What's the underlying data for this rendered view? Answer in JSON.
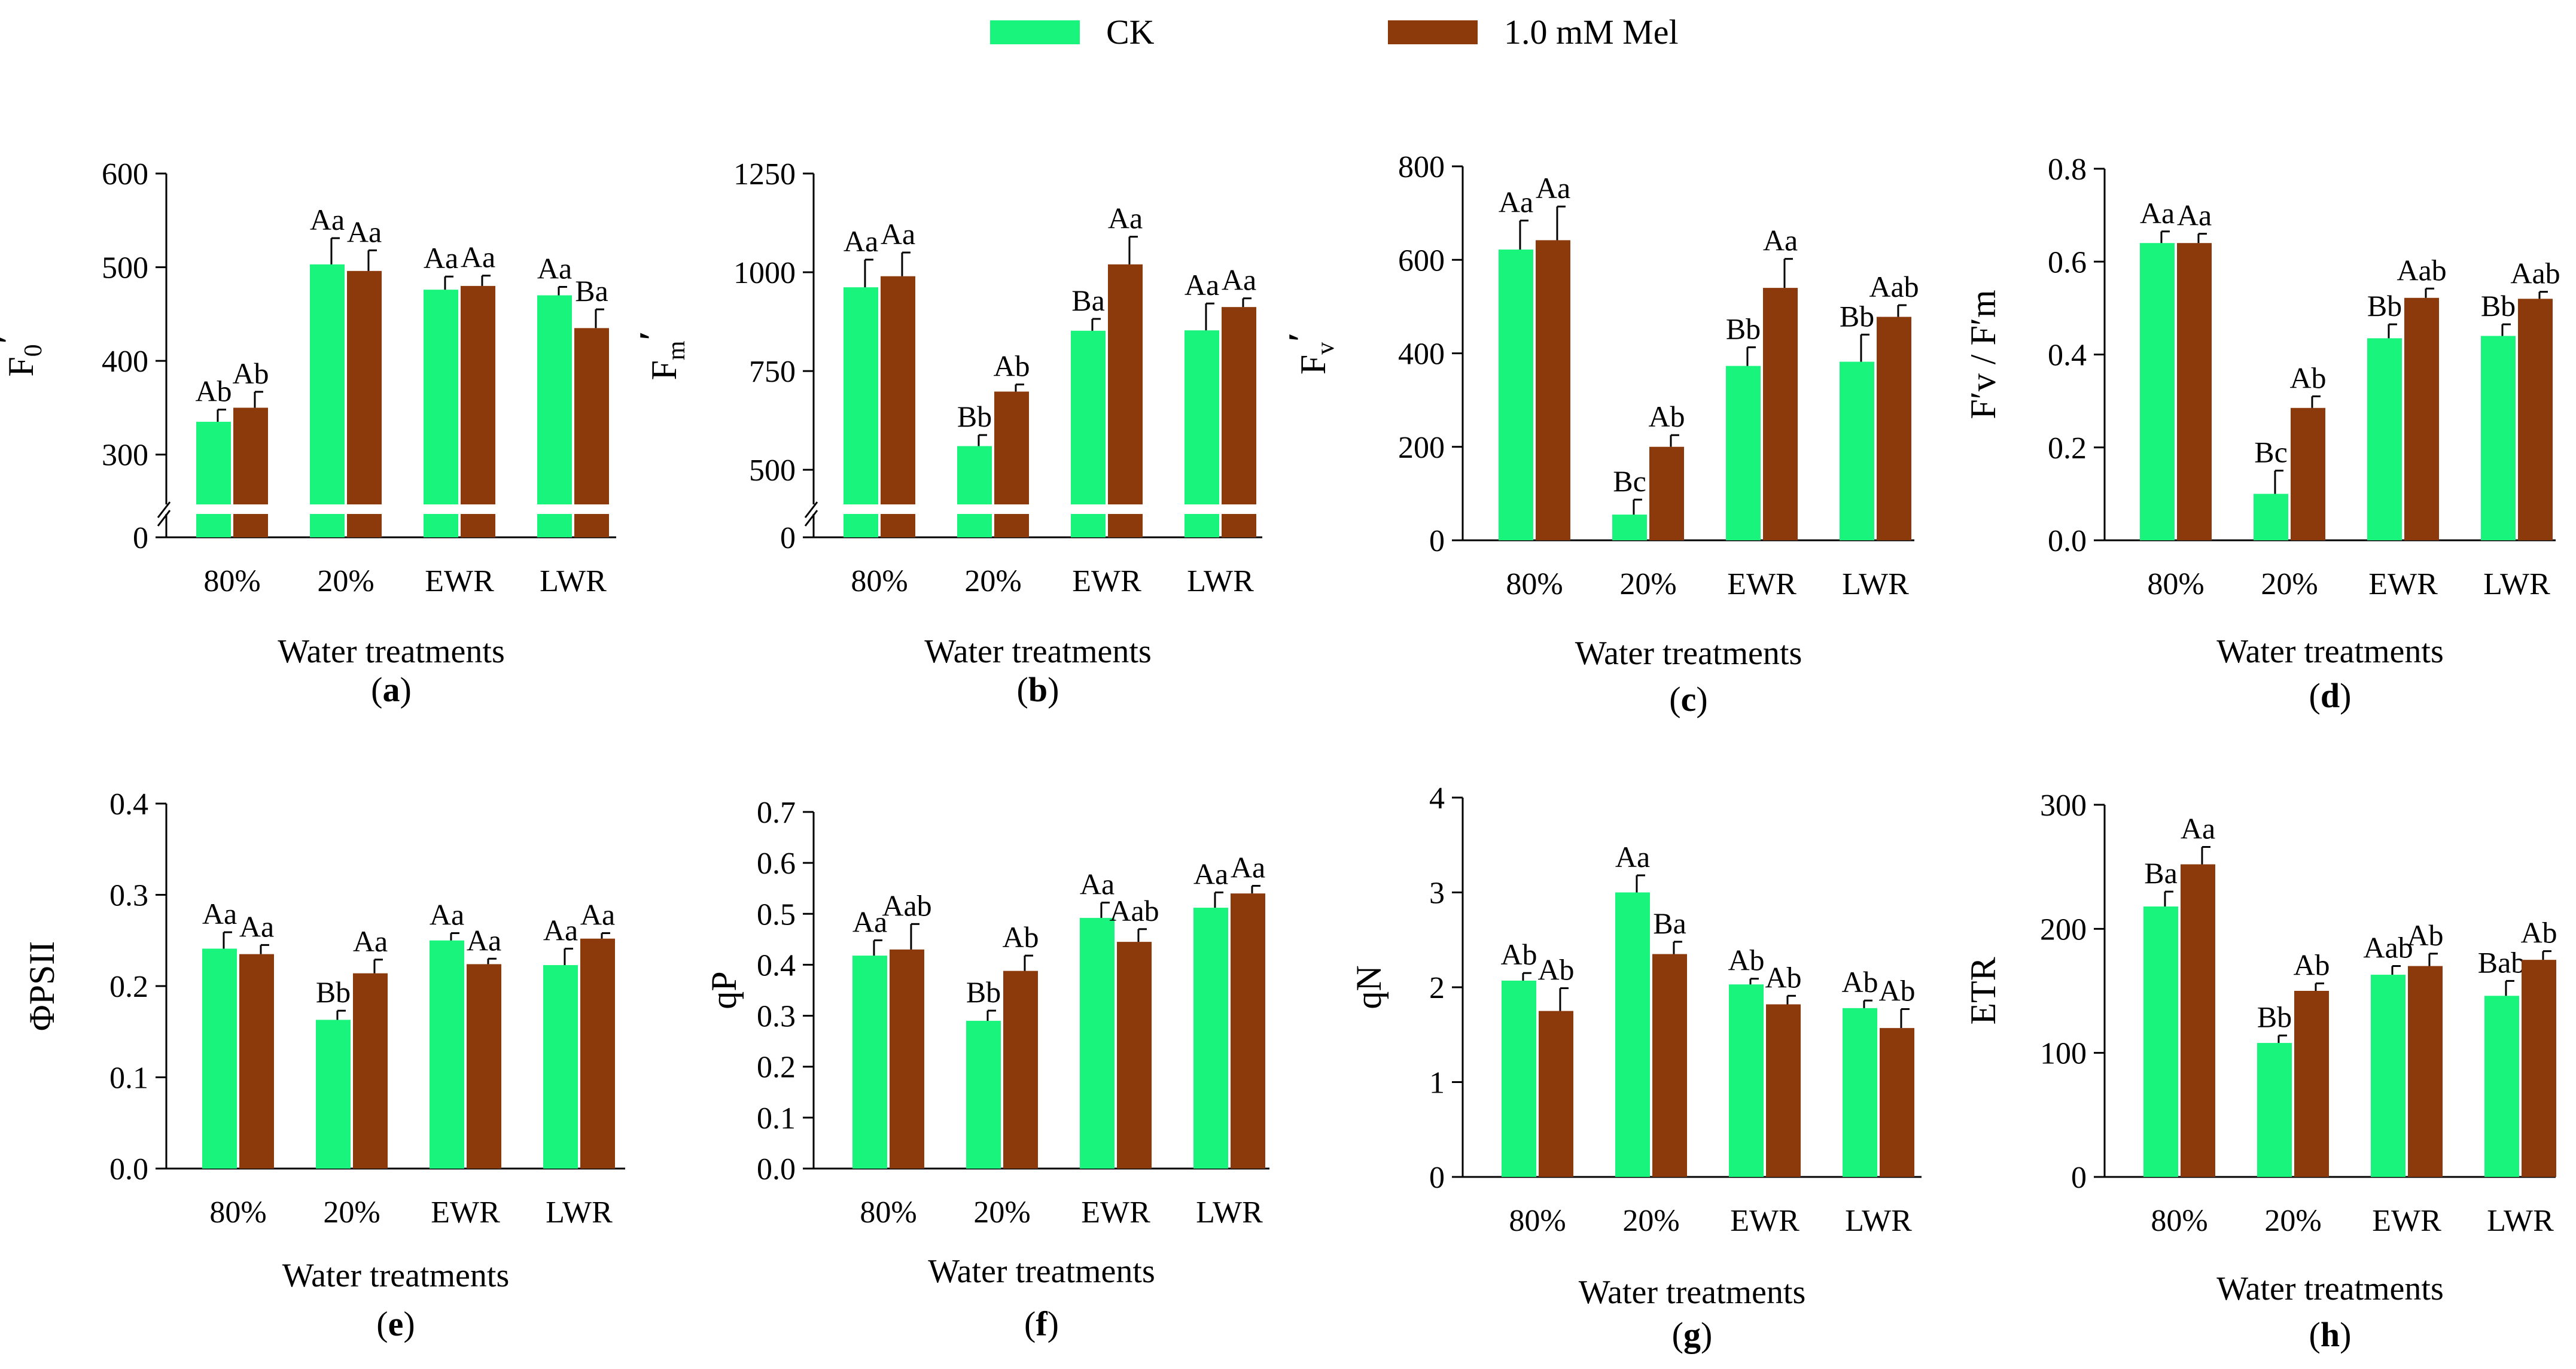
{
  "legend": {
    "ck_label": "CK",
    "mel_label": "1.0 mM Mel"
  },
  "colors": {
    "ck": "#19f47c",
    "mel": "#8c3a0c",
    "axis": "#000000",
    "break_fill": "#ffffff"
  },
  "chart_data": [
    {
      "id": "a",
      "panel_label": "a",
      "type": "bar",
      "title": "",
      "xlabel": "Water treatments",
      "ylabel": "F",
      "ylabel_sub": "0",
      "ylabel_prime": "′",
      "categories": [
        "80%",
        "20%",
        "EWR",
        "LWR"
      ],
      "y_ticks": [
        "600",
        "500",
        "400",
        "300",
        "0"
      ],
      "ylim": [
        250,
        600
      ],
      "axis_break": true,
      "break_lower_label": "0",
      "series": [
        {
          "name": "CK",
          "values": [
            335,
            503,
            476,
            470
          ],
          "errors": [
            13,
            28,
            14,
            9
          ],
          "letters": [
            "Ab",
            "Aa",
            "Aa",
            "Aa"
          ]
        },
        {
          "name": "1.0 mM Mel",
          "values": [
            350,
            496,
            480,
            435
          ],
          "errors": [
            17,
            22,
            11,
            20
          ],
          "letters": [
            "Ab",
            "Aa",
            "Aa",
            "Ba"
          ]
        }
      ]
    },
    {
      "id": "b",
      "panel_label": "b",
      "type": "bar",
      "title": "",
      "xlabel": "Water treatments",
      "ylabel": "F",
      "ylabel_sub": "m",
      "ylabel_prime": "′",
      "categories": [
        "80%",
        "20%",
        "EWR",
        "LWR"
      ],
      "y_ticks": [
        "1250",
        "1000",
        "750",
        "500",
        "0"
      ],
      "ylim": [
        420,
        1250
      ],
      "axis_break": true,
      "break_lower_label": "0",
      "series": [
        {
          "name": "CK",
          "values": [
            962,
            560,
            852,
            853
          ],
          "errors": [
            70,
            28,
            30,
            68
          ],
          "letters": [
            "Aa",
            "Bb",
            "Ba",
            "Aa"
          ]
        },
        {
          "name": "1.0 mM Mel",
          "values": [
            990,
            698,
            1020,
            912
          ],
          "errors": [
            60,
            18,
            70,
            22
          ],
          "letters": [
            "Aa",
            "Ab",
            "Aa",
            "Aa"
          ]
        }
      ]
    },
    {
      "id": "c",
      "panel_label": "c",
      "type": "bar",
      "title": "",
      "xlabel": "Water treatments",
      "ylabel": "F",
      "ylabel_sub": "v",
      "ylabel_prime": "′",
      "categories": [
        "80%",
        "20%",
        "EWR",
        "LWR"
      ],
      "y_ticks": [
        "800",
        "600",
        "400",
        "200",
        "0"
      ],
      "ylim": [
        0,
        800
      ],
      "axis_break": false,
      "series": [
        {
          "name": "CK",
          "values": [
            622,
            55,
            373,
            382
          ],
          "errors": [
            62,
            32,
            40,
            58
          ],
          "letters": [
            "Aa",
            "Bc",
            "Bb",
            "Bb"
          ]
        },
        {
          "name": "1.0 mM Mel",
          "values": [
            642,
            200,
            540,
            478
          ],
          "errors": [
            72,
            25,
            62,
            25
          ],
          "letters": [
            "Aa",
            "Ab",
            "Aa",
            "Aab"
          ]
        }
      ]
    },
    {
      "id": "d",
      "panel_label": "d",
      "type": "bar",
      "title": "",
      "xlabel": "Water treatments",
      "ylabel": "F′v / F′m",
      "ylabel_sub": "",
      "ylabel_prime": "",
      "categories": [
        "80%",
        "20%",
        "EWR",
        "LWR"
      ],
      "y_ticks": [
        "0.8",
        "0.6",
        "0.4",
        "0.2",
        "0.0"
      ],
      "ylim": [
        0,
        0.8
      ],
      "axis_break": false,
      "series": [
        {
          "name": "CK",
          "values": [
            0.64,
            0.1,
            0.435,
            0.44
          ],
          "errors": [
            0.025,
            0.05,
            0.03,
            0.025
          ],
          "letters": [
            "Aa",
            "Bc",
            "Bb",
            "Bb"
          ]
        },
        {
          "name": "1.0 mM Mel",
          "values": [
            0.64,
            0.285,
            0.522,
            0.52
          ],
          "errors": [
            0.02,
            0.025,
            0.02,
            0.015
          ],
          "letters": [
            "Aa",
            "Ab",
            "Aab",
            "Aab"
          ]
        }
      ]
    },
    {
      "id": "e",
      "panel_label": "e",
      "type": "bar",
      "title": "",
      "xlabel": "Water treatments",
      "ylabel": "ΦPSII",
      "ylabel_sub": "",
      "ylabel_prime": "",
      "categories": [
        "80%",
        "20%",
        "EWR",
        "LWR"
      ],
      "y_ticks": [
        "0.4",
        "0.3",
        "0.2",
        "0.1",
        "0.0"
      ],
      "ylim": [
        0,
        0.4
      ],
      "axis_break": false,
      "series": [
        {
          "name": "CK",
          "values": [
            0.241,
            0.163,
            0.25,
            0.223
          ],
          "errors": [
            0.018,
            0.01,
            0.008,
            0.018
          ],
          "letters": [
            "Aa",
            "Bb",
            "Aa",
            "Aa"
          ]
        },
        {
          "name": "1.0 mM Mel",
          "values": [
            0.235,
            0.214,
            0.224,
            0.252
          ],
          "errors": [
            0.01,
            0.015,
            0.006,
            0.006
          ],
          "letters": [
            "Aa",
            "Aa",
            "Aa",
            "Aa"
          ]
        }
      ]
    },
    {
      "id": "f",
      "panel_label": "f",
      "type": "bar",
      "title": "",
      "xlabel": "Water treatments",
      "ylabel": "qP",
      "ylabel_sub": "",
      "ylabel_prime": "",
      "categories": [
        "80%",
        "20%",
        "EWR",
        "LWR"
      ],
      "y_ticks": [
        "0.7",
        "0.6",
        "0.5",
        "0.4",
        "0.3",
        "0.2",
        "0.1",
        "0.0"
      ],
      "ylim": [
        0,
        0.7
      ],
      "axis_break": false,
      "series": [
        {
          "name": "CK",
          "values": [
            0.418,
            0.29,
            0.492,
            0.512
          ],
          "errors": [
            0.03,
            0.02,
            0.03,
            0.03
          ],
          "letters": [
            "Aa",
            "Bb",
            "Aa",
            "Aa"
          ]
        },
        {
          "name": "1.0 mM Mel",
          "values": [
            0.43,
            0.388,
            0.445,
            0.54
          ],
          "errors": [
            0.05,
            0.03,
            0.025,
            0.015
          ],
          "letters": [
            "Aab",
            "Ab",
            "Aab",
            "Aa"
          ]
        }
      ]
    },
    {
      "id": "g",
      "panel_label": "g",
      "type": "bar",
      "title": "",
      "xlabel": "Water treatments",
      "ylabel": "qN",
      "ylabel_sub": "",
      "ylabel_prime": "",
      "categories": [
        "80%",
        "20%",
        "EWR",
        "LWR"
      ],
      "y_ticks": [
        "4",
        "3",
        "2",
        "1",
        "0"
      ],
      "ylim": [
        0,
        4
      ],
      "axis_break": false,
      "series": [
        {
          "name": "CK",
          "values": [
            2.07,
            3.0,
            2.03,
            1.78
          ],
          "errors": [
            0.08,
            0.18,
            0.06,
            0.08
          ],
          "letters": [
            "Ab",
            "Aa",
            "Ab",
            "Ab"
          ]
        },
        {
          "name": "1.0 mM Mel",
          "values": [
            1.75,
            2.35,
            1.82,
            1.57
          ],
          "errors": [
            0.24,
            0.13,
            0.09,
            0.2
          ],
          "letters": [
            "Ab",
            "Ba",
            "Ab",
            "Ab"
          ]
        }
      ]
    },
    {
      "id": "h",
      "panel_label": "h",
      "type": "bar",
      "title": "",
      "xlabel": "Water treatments",
      "ylabel": "ETR",
      "ylabel_sub": "",
      "ylabel_prime": "",
      "categories": [
        "80%",
        "20%",
        "EWR",
        "LWR"
      ],
      "y_ticks": [
        "300",
        "200",
        "100",
        "0"
      ],
      "ylim": [
        0,
        300
      ],
      "axis_break": false,
      "series": [
        {
          "name": "CK",
          "values": [
            218,
            108,
            163,
            146
          ],
          "errors": [
            12,
            6,
            7,
            12
          ],
          "letters": [
            "Ba",
            "Bb",
            "Aab",
            "Bab"
          ]
        },
        {
          "name": "1.0 mM Mel",
          "values": [
            252,
            150,
            170,
            175
          ],
          "errors": [
            14,
            6,
            10,
            7
          ],
          "letters": [
            "Aa",
            "Ab",
            "Ab",
            "Ab"
          ]
        }
      ]
    }
  ]
}
